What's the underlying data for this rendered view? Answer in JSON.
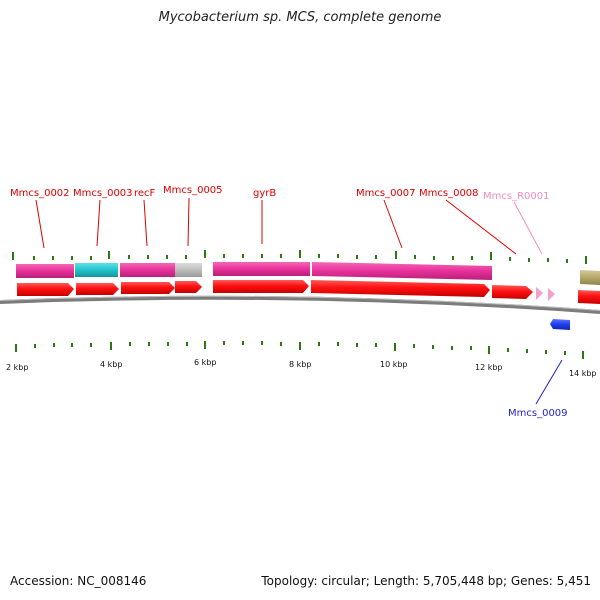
{
  "title": "Mycobacterium sp. MCS, complete genome",
  "footer": {
    "accession": "Accession: NC_008146",
    "summary": "Topology: circular; Length: 5,705,448 bp; Genes: 5,451"
  },
  "colors": {
    "feature_red": "#ff1a1a",
    "cds_pink": "#e8309a",
    "cds_cyan": "#22c3cc",
    "cds_gray": "#bdbdbd",
    "cds_olive": "#b5a86a",
    "rna_pink": "#f3a1c8",
    "reverse_blue": "#1f3cf0",
    "tick_green": "#2a7a10",
    "backbone_gray": "#8c8c8c"
  },
  "axis": {
    "scale_labels": [
      "2 kbp",
      "4 kbp",
      "6 kbp",
      "8 kbp",
      "10 kbp",
      "12 kbp",
      "14 kbp"
    ]
  },
  "gene_labels": [
    {
      "text": "Mmcs_0002",
      "color": "#e00000"
    },
    {
      "text": "Mmcs_0003",
      "color": "#e00000"
    },
    {
      "text": "recF",
      "color": "#e00000"
    },
    {
      "text": "Mmcs_0005",
      "color": "#e00000"
    },
    {
      "text": "gyrB",
      "color": "#e00000"
    },
    {
      "text": "Mmcs_0007",
      "color": "#e00000"
    },
    {
      "text": "Mmcs_0008",
      "color": "#e00000"
    },
    {
      "text": "Mmcs_R0001",
      "color": "#f08cbf"
    },
    {
      "text": "Mmcs_0009",
      "color": "#1f1fd0"
    }
  ]
}
